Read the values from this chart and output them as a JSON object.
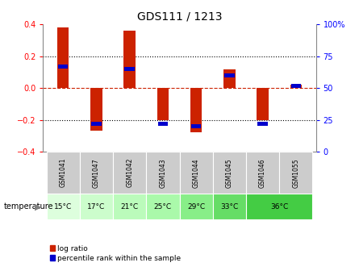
{
  "title": "GDS111 / 1213",
  "samples": [
    "GSM1041",
    "GSM1047",
    "GSM1042",
    "GSM1043",
    "GSM1044",
    "GSM1045",
    "GSM1046",
    "GSM1055"
  ],
  "log_ratios": [
    0.38,
    -0.27,
    0.36,
    -0.2,
    -0.28,
    0.12,
    -0.2,
    0.02
  ],
  "percentile_ranks": [
    67,
    22,
    65,
    22,
    20,
    60,
    22,
    52
  ],
  "temperatures": [
    "15°C",
    "17°C",
    "21°C",
    "25°C",
    "29°C",
    "33°C",
    "36°C"
  ],
  "temp_assignment": [
    0,
    1,
    2,
    3,
    4,
    5,
    6,
    6
  ],
  "temp_colors": [
    "#ddfedd",
    "#ccfdcc",
    "#bbfbbb",
    "#aaf9aa",
    "#88ee88",
    "#66dd66",
    "#44cc44"
  ],
  "bar_color": "#cc2200",
  "dot_color": "#0000cc",
  "ylim": [
    -0.4,
    0.4
  ],
  "yticks_left": [
    -0.4,
    -0.2,
    0.0,
    0.2,
    0.4
  ],
  "yticks_right": [
    0,
    25,
    50,
    75,
    100
  ],
  "grid_color": "#000000",
  "zero_line_color": "#cc2200",
  "bg_color": "#ffffff",
  "sample_area_color": "#cccccc",
  "bar_width": 0.35,
  "legend_red_label": "log ratio",
  "legend_blue_label": "percentile rank within the sample",
  "temperature_label": "temperature"
}
